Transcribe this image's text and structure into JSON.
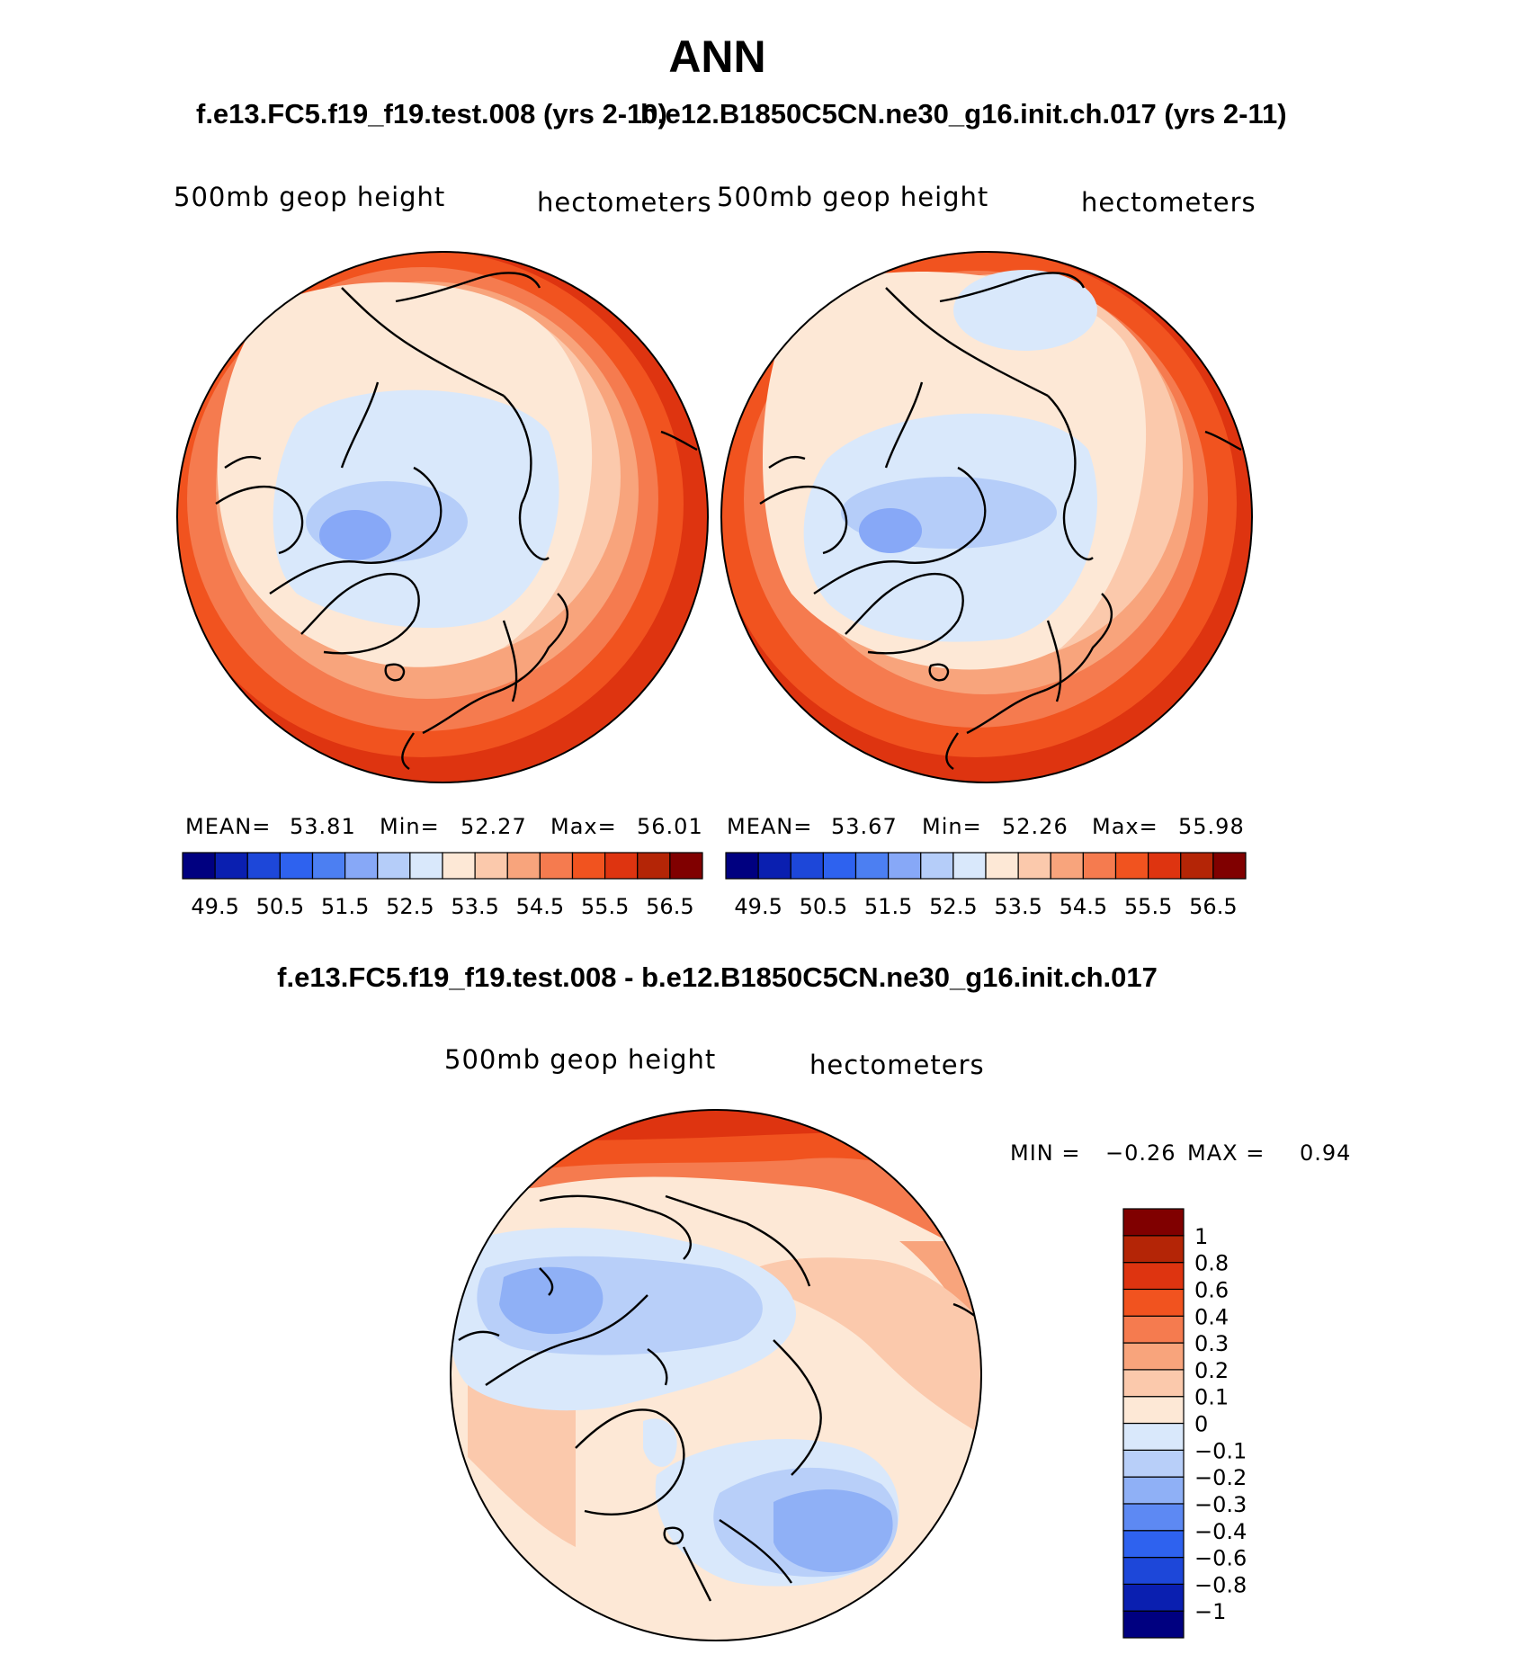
{
  "title": "ANN",
  "case1_header": "f.e13.FC5.f19_f19.test.008 (yrs 2-10)",
  "case2_header": "b.e12.B1850C5CN.ne30_g16.init.ch.017 (yrs 2-11)",
  "diff_header": "f.e13.FC5.f19_f19.test.008 - b.e12.B1850C5CN.ne30_g16.init.ch.017",
  "panels": [
    {
      "variable": "500mb geop height",
      "units": "hectometers",
      "stats": {
        "mean_label": "MEAN=",
        "mean": "53.81",
        "min_label": "Min=",
        "min": "52.27",
        "max_label": "Max=",
        "max": "56.01"
      }
    },
    {
      "variable": "500mb geop height",
      "units": "hectometers",
      "stats": {
        "mean_label": "MEAN=",
        "mean": "53.67",
        "min_label": "Min=",
        "min": "52.26",
        "max_label": "Max=",
        "max": "55.98"
      }
    }
  ],
  "diff_panel": {
    "variable": "500mb geop height",
    "units": "hectometers",
    "min_label": "MIN =",
    "min": "−0.26",
    "max_label": "MAX =",
    "max": "0.94"
  },
  "field_colorbar": {
    "colors": [
      "#000080",
      "#0a1fb0",
      "#1d47d9",
      "#2e62ef",
      "#4c7ff2",
      "#87a8f7",
      "#b5cdf9",
      "#d9e8fb",
      "#fde8d6",
      "#fbc9ac",
      "#f8a47c",
      "#f57b4f",
      "#f1531f",
      "#de3410",
      "#b42506",
      "#800000"
    ],
    "tick_labels": [
      "49.5",
      "50.5",
      "51.5",
      "52.5",
      "53.5",
      "54.5",
      "55.5",
      "56.5"
    ]
  },
  "diff_colorbar": {
    "colors": [
      "#000080",
      "#0a1fb0",
      "#1d47d9",
      "#2e62ef",
      "#5d89f3",
      "#8fb0f6",
      "#b8cff9",
      "#d9e8fb",
      "#fde8d6",
      "#fbc9ac",
      "#f8a47c",
      "#f57b4f",
      "#f1531f",
      "#de3410",
      "#b42506",
      "#800000"
    ],
    "tick_labels": [
      "−1",
      "−0.8",
      "−0.6",
      "−0.4",
      "−0.3",
      "−0.2",
      "−0.1",
      "0",
      "0.1",
      "0.2",
      "0.3",
      "0.4",
      "0.6",
      "0.8",
      "1"
    ]
  }
}
